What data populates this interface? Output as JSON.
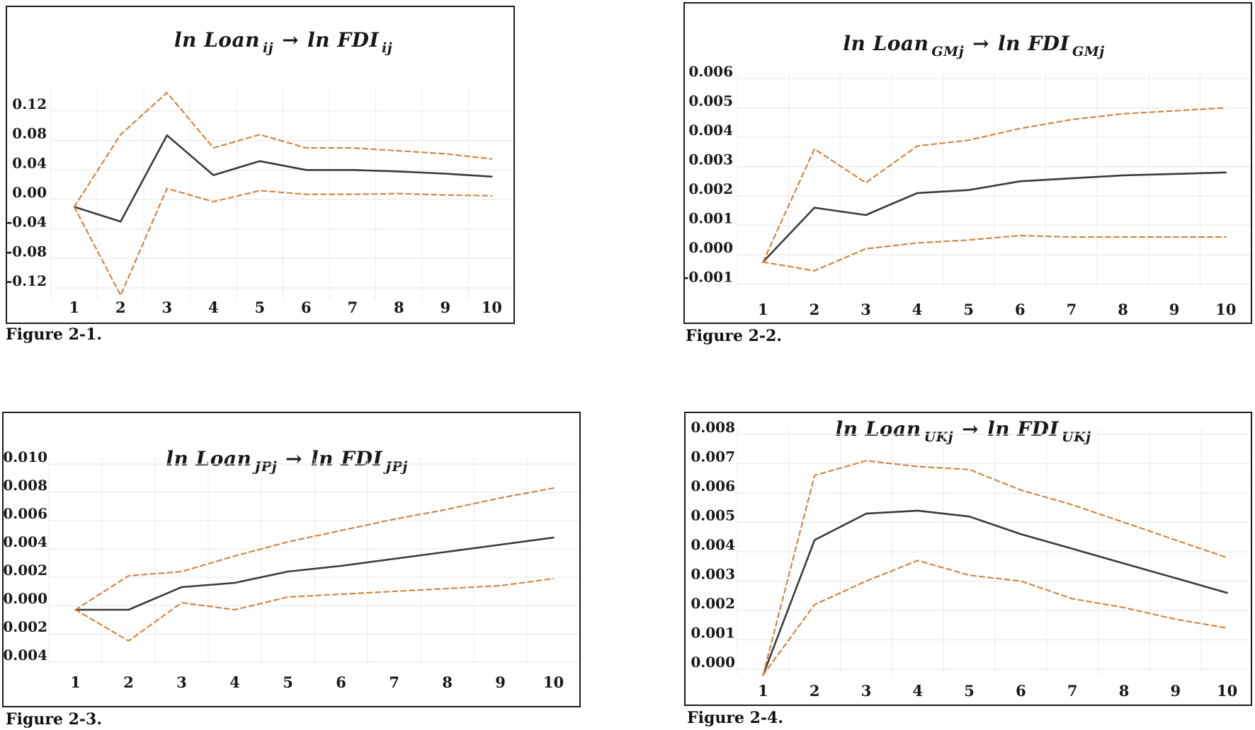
{
  "colors": {
    "estimate_line": "#3a3a3a",
    "band_line": "#d0823d",
    "grid_line": "#e9e9e9",
    "box_border": "#1c1c1c",
    "text": "#181818"
  },
  "chart_data": [
    {
      "type": "line",
      "caption": "Figure 2-1.",
      "title": {
        "lhs_text": "ln Loan",
        "lhs_sub": "ij",
        "arrow": "→",
        "rhs_text": "ln FDI",
        "rhs_sub": "ij"
      },
      "x": [
        "1",
        "2",
        "3",
        "4",
        "5",
        "6",
        "7",
        "8",
        "9",
        "10"
      ],
      "ylim": [
        -0.14,
        0.155
      ],
      "grid": true,
      "legend": "none",
      "yticks": {
        "values": [
          0.12,
          0.08,
          0.04,
          0.0,
          -0.04,
          -0.08,
          -0.12
        ],
        "labels": [
          "0.12",
          "0.08",
          "0.04",
          "0.00",
          "-0.04",
          "-0.08",
          "-0.12"
        ]
      },
      "series": [
        {
          "name": "estimate",
          "style": "solid",
          "values": [
            -0.01,
            -0.03,
            0.087,
            0.033,
            0.052,
            0.04,
            0.04,
            0.038,
            0.035,
            0.031
          ]
        },
        {
          "name": "upper-band",
          "style": "dashed",
          "values": [
            -0.01,
            0.088,
            0.145,
            0.07,
            0.088,
            0.07,
            0.07,
            0.066,
            0.062,
            0.055
          ]
        },
        {
          "name": "lower-band",
          "style": "dashed",
          "values": [
            -0.01,
            -0.13,
            0.015,
            -0.003,
            0.012,
            0.007,
            0.007,
            0.008,
            0.006,
            0.005
          ]
        }
      ]
    },
    {
      "type": "line",
      "caption": "Figure 2-2.",
      "title": {
        "lhs_text": "ln Loan",
        "lhs_sub": "GMj",
        "arrow": "→",
        "rhs_text": "ln FDI",
        "rhs_sub": "GMj"
      },
      "x": [
        "1",
        "2",
        "3",
        "4",
        "5",
        "6",
        "7",
        "8",
        "9",
        "10"
      ],
      "ylim": [
        -0.0012,
        0.0063
      ],
      "grid": true,
      "legend": "none",
      "yticks": {
        "values": [
          0.006,
          0.005,
          0.004,
          0.003,
          0.002,
          0.001,
          0.0,
          -0.001
        ],
        "labels": [
          "0.006",
          "0.005",
          "0.004",
          "0.003",
          "0.002",
          "0.001",
          "0.000",
          "-0.001"
        ]
      },
      "series": [
        {
          "name": "estimate",
          "style": "solid",
          "values": [
            -0.00025,
            0.0016,
            0.00135,
            0.0021,
            0.0022,
            0.0025,
            0.0026,
            0.0027,
            0.00275,
            0.0028
          ]
        },
        {
          "name": "upper-band",
          "style": "dashed",
          "values": [
            -0.00025,
            0.0036,
            0.00245,
            0.0037,
            0.0039,
            0.0043,
            0.0046,
            0.0048,
            0.0049,
            0.005
          ]
        },
        {
          "name": "lower-band",
          "style": "dashed",
          "values": [
            -0.00025,
            -0.00055,
            0.0002,
            0.0004,
            0.0005,
            0.00065,
            0.0006,
            0.0006,
            0.0006,
            0.0006
          ]
        }
      ]
    },
    {
      "type": "line",
      "caption": "Figure 2-3.",
      "title": {
        "lhs_text": "ln Loan",
        "lhs_sub": "JPj",
        "arrow": "→",
        "rhs_text": "ln FDI",
        "rhs_sub": "JPj"
      },
      "x": [
        "1",
        "2",
        "3",
        "4",
        "5",
        "6",
        "7",
        "8",
        "9",
        "10"
      ],
      "ylim": [
        -0.0045,
        0.0105
      ],
      "grid": true,
      "legend": "none",
      "yticks": {
        "values": [
          0.01,
          0.008,
          0.006,
          0.004,
          0.002,
          0.0,
          -0.002,
          -0.004
        ],
        "labels": [
          "0.010",
          "0.008",
          "0.006",
          "0.004",
          "0.002",
          "0.000",
          "-0.002",
          "-0.004"
        ]
      },
      "series": [
        {
          "name": "estimate",
          "style": "solid",
          "values": [
            -0.0003,
            -0.0003,
            0.0013,
            0.0016,
            0.0024,
            0.0028,
            0.0033,
            0.0038,
            0.0043,
            0.0048
          ]
        },
        {
          "name": "upper-band",
          "style": "dashed",
          "values": [
            -0.0003,
            0.0021,
            0.0024,
            0.0035,
            0.0045,
            0.0053,
            0.0061,
            0.0068,
            0.0076,
            0.0083
          ]
        },
        {
          "name": "lower-band",
          "style": "dashed",
          "values": [
            -0.0003,
            -0.0025,
            0.0002,
            -0.0003,
            0.0006,
            0.0008,
            0.001,
            0.0012,
            0.0014,
            0.0019
          ]
        }
      ]
    },
    {
      "type": "line",
      "caption": "Figure 2-4.",
      "title": {
        "lhs_text": "ln Loan",
        "lhs_sub": "UKj",
        "arrow": "→",
        "rhs_text": "ln FDI",
        "rhs_sub": "UKj"
      },
      "x": [
        "1",
        "2",
        "3",
        "4",
        "5",
        "6",
        "7",
        "8",
        "9",
        "10"
      ],
      "ylim": [
        -0.0005,
        0.0085
      ],
      "grid": true,
      "legend": "none",
      "yticks": {
        "values": [
          0.008,
          0.007,
          0.006,
          0.005,
          0.004,
          0.003,
          0.002,
          0.001,
          0.0
        ],
        "labels": [
          "0.008",
          "0.007",
          "0.006",
          "0.005",
          "0.004",
          "0.003",
          "0.002",
          "0.001",
          "0.000"
        ]
      },
      "series": [
        {
          "name": "estimate",
          "style": "solid",
          "values": [
            -0.0002,
            0.0044,
            0.0053,
            0.0054,
            0.0052,
            0.0046,
            0.0041,
            0.0036,
            0.0031,
            0.0026
          ]
        },
        {
          "name": "upper-band",
          "style": "dashed",
          "values": [
            -0.0002,
            0.0066,
            0.0071,
            0.0069,
            0.0068,
            0.0061,
            0.0056,
            0.005,
            0.0044,
            0.0038
          ]
        },
        {
          "name": "lower-band",
          "style": "dashed",
          "values": [
            -0.0002,
            0.0022,
            0.003,
            0.0037,
            0.0032,
            0.003,
            0.0024,
            0.0021,
            0.0017,
            0.0014
          ]
        }
      ]
    }
  ]
}
